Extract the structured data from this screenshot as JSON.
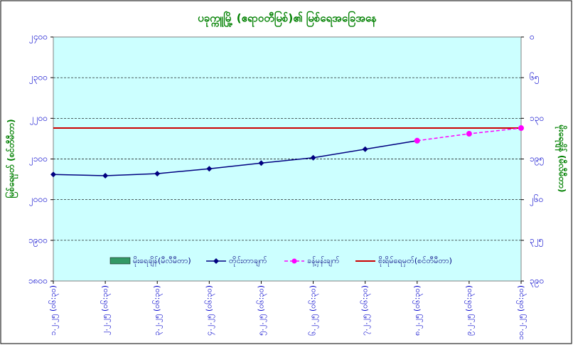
{
  "chart_data": {
    "type": "line",
    "title": "ပခုက္ကူမြို့ (ဧရာဝတီမြစ်)၏ မြစ်ရေအခြေအနေ",
    "y_label": "မြစ်ရေမှတ် (စင်တီမီတာ)",
    "y2_label": "မိုးရေချိန် (မီလီမီတာ)",
    "categories": [
      "၁.၂.၂၅ (၀၆:၃၀)",
      "၂.၂.၂၅ (၀၆:၃၀)",
      "၃.၂.၂၅ (၀၆:၃၀)",
      "၄.၂.၂၅ (၀၆:၃၀)",
      "၅.၂.၂၅ (၀၆:၃၀)",
      "၆.၂.၂၅ (၀၆:၃၀)",
      "၇.၂.၂၅ (၀၆:၃၀)",
      "၈.၂.၂၅ (၀၆:၃၀)",
      "၉.၂.၂၅ (၀၆:၃၀)",
      "၁၀.၂.၂၅ (၀၆:၃၀)"
    ],
    "ylim": [
      1800,
      2400
    ],
    "yticks": [
      {
        "value": 1800,
        "label": "၁၈၀၀"
      },
      {
        "value": 1900,
        "label": "၁၉၀၀"
      },
      {
        "value": 2000,
        "label": "၂၀၀၀"
      },
      {
        "value": 2100,
        "label": "၂၁၀၀"
      },
      {
        "value": 2200,
        "label": "၂၂၀၀"
      },
      {
        "value": 2300,
        "label": "၂၃၀၀"
      },
      {
        "value": 2400,
        "label": "၂၄၀၀"
      }
    ],
    "y2lim": [
      0,
      390
    ],
    "y2_inverted": true,
    "y2ticks": [
      {
        "value": 0,
        "label": "၀"
      },
      {
        "value": 65,
        "label": "၆၅"
      },
      {
        "value": 130,
        "label": "၁၃၀"
      },
      {
        "value": 195,
        "label": "၁၉၅"
      },
      {
        "value": 260,
        "label": "၂၆၀"
      },
      {
        "value": 325,
        "label": "၃၂၅"
      },
      {
        "value": 390,
        "label": "၃၉၀"
      }
    ],
    "grid": true,
    "series": [
      {
        "name": "မိုးရေချိန်(မီလီမီတာ)",
        "kind": "bar",
        "axis": "y2",
        "color": "#339966",
        "values": [
          0,
          0,
          0,
          0,
          0,
          0,
          0,
          0,
          0,
          0
        ]
      },
      {
        "name": "တိုင်းတာချက်",
        "kind": "line",
        "color": "#000080",
        "values": [
          2062,
          2059,
          2064,
          2076,
          2090,
          2103,
          2124,
          2145,
          null,
          null
        ]
      },
      {
        "name": "ခန့်မှန်းချက်",
        "kind": "dashed",
        "color": "#ff00ff",
        "values": [
          null,
          null,
          null,
          null,
          null,
          null,
          null,
          2145,
          2162,
          2176
        ]
      }
    ],
    "reference_line": {
      "name": "စိုးရိမ်ရေမှတ်(စင်တီမီတာ)",
      "value": 2176,
      "color": "#cc0000"
    }
  }
}
